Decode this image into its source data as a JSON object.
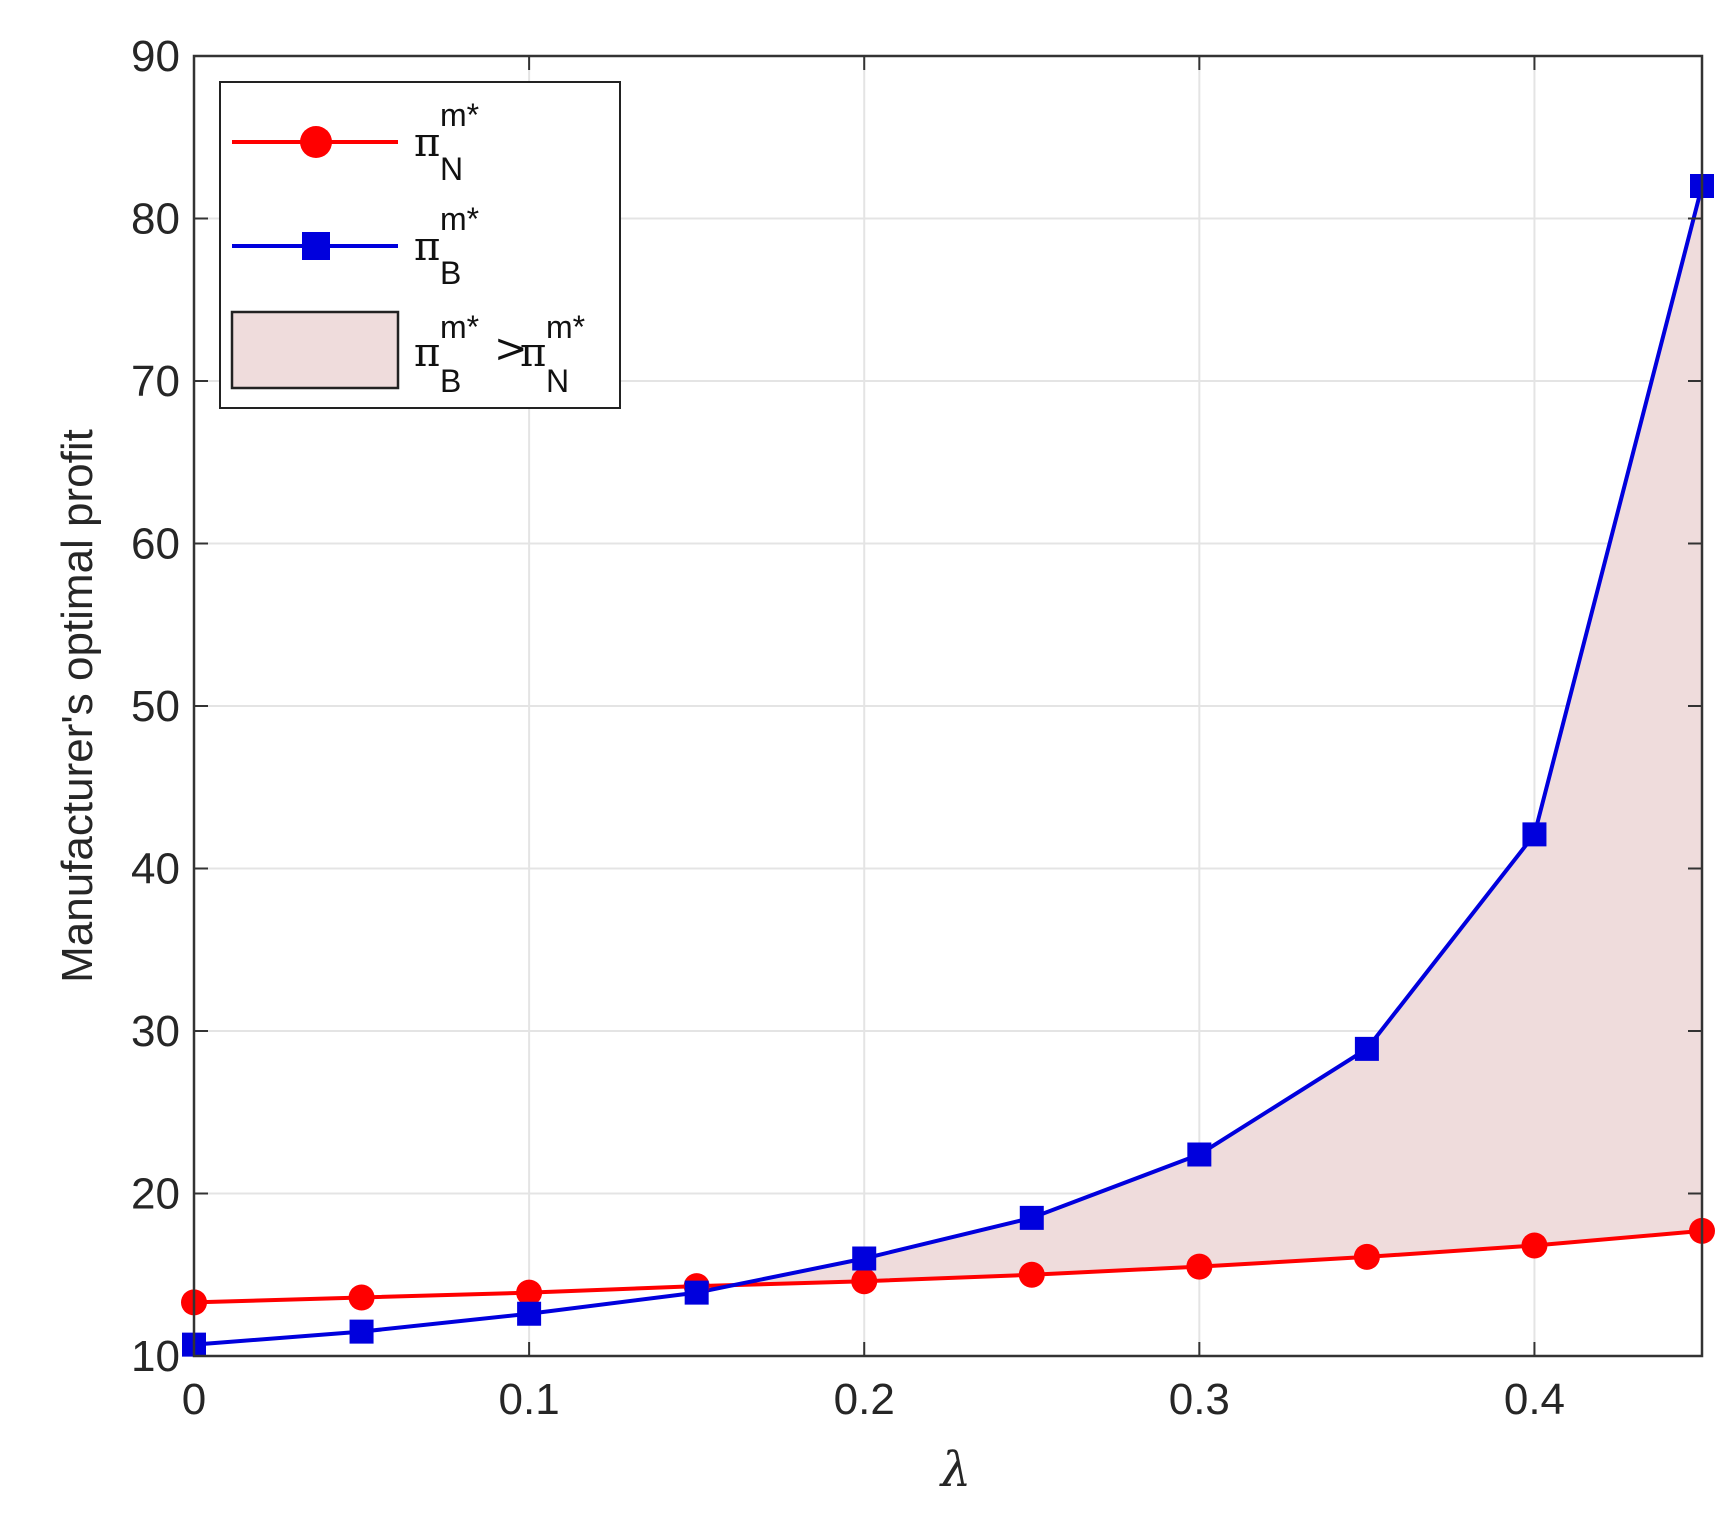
{
  "chart_data": {
    "type": "line",
    "xlabel": "λ",
    "ylabel": "Manufacturer's optimal profit",
    "xlim": [
      0,
      0.45
    ],
    "ylim": [
      10,
      90
    ],
    "xticks": [
      0,
      0.1,
      0.2,
      0.3,
      0.4
    ],
    "xtick_labels": [
      "0",
      "0.1",
      "0.2",
      "0.3",
      "0.4"
    ],
    "yticks": [
      10,
      20,
      30,
      40,
      50,
      60,
      70,
      80,
      90
    ],
    "ytick_labels": [
      "10",
      "20",
      "30",
      "40",
      "50",
      "60",
      "70",
      "80",
      "90"
    ],
    "grid": true,
    "legend_position": "top-left",
    "x": [
      0,
      0.05,
      0.1,
      0.15,
      0.2,
      0.25,
      0.3,
      0.35,
      0.4,
      0.45
    ],
    "series": [
      {
        "name": "π_N^{m*}",
        "legend": {
          "base": "π",
          "sup": "m*",
          "sub": "N"
        },
        "color": "#ff0000",
        "marker": "circle",
        "values": [
          13.3,
          13.6,
          13.9,
          14.3,
          14.6,
          15.0,
          15.5,
          16.1,
          16.8,
          17.7
        ]
      },
      {
        "name": "π_B^{m*}",
        "legend": {
          "base": "π",
          "sup": "m*",
          "sub": "B"
        },
        "color": "#0000dd",
        "marker": "square",
        "values": [
          10.7,
          11.5,
          12.6,
          13.9,
          16.0,
          18.5,
          22.4,
          28.9,
          42.1,
          82.0
        ]
      }
    ],
    "fill_region": {
      "label": "π_B^{m*}>π_N^{m*}",
      "legend": {
        "base1": "π",
        "sup1": "m*",
        "sub1": "B",
        "op": ">",
        "base2": "π",
        "sup2": "m*",
        "sub2": "N"
      },
      "color": "#efdcdc",
      "between": [
        "π_B^{m*}",
        "π_N^{m*}"
      ],
      "where": "π_B^{m*} > π_N^{m*}"
    }
  }
}
